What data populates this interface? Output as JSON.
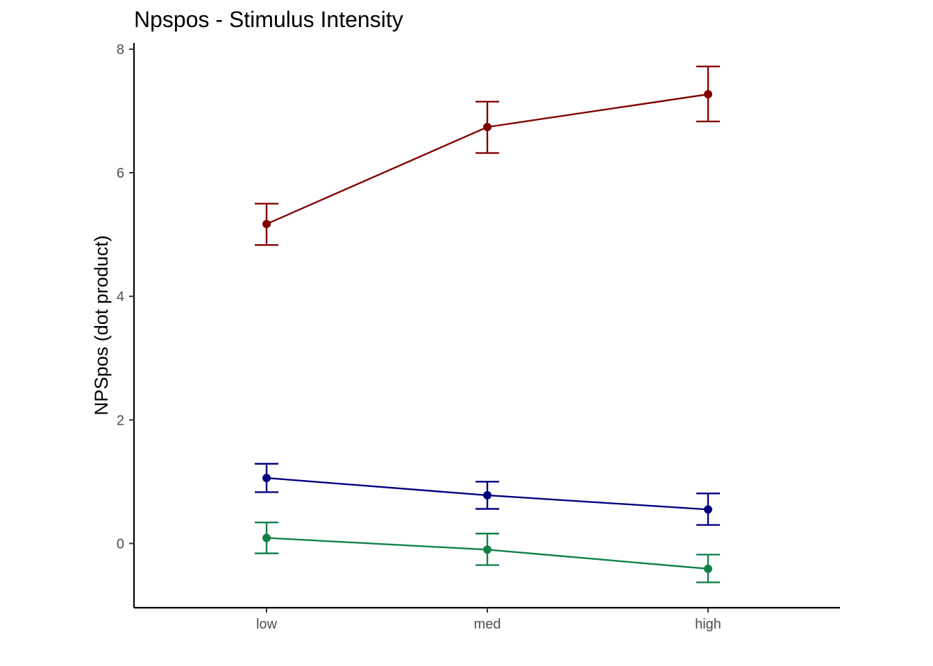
{
  "chart_data": {
    "type": "line",
    "title": "Npspos - Stimulus Intensity",
    "xlabel": "",
    "ylabel": "NPSpos  (dot product)",
    "categories": [
      "low",
      "med",
      "high"
    ],
    "ylim": [
      -1.04,
      8.1
    ],
    "y_ticks": [
      0,
      2,
      4,
      6,
      8
    ],
    "grid": false,
    "legend": "none",
    "series": [
      {
        "color": "#800000",
        "values": [
          5.17,
          6.74,
          7.27
        ],
        "err_low": [
          4.83,
          6.32,
          6.83
        ],
        "err_high": [
          5.5,
          7.15,
          7.72
        ]
      },
      {
        "color": "#00007f",
        "values": [
          1.06,
          0.78,
          0.55
        ],
        "err_low": [
          0.83,
          0.56,
          0.3
        ],
        "err_high": [
          1.29,
          1.0,
          0.81
        ]
      },
      {
        "color": "#118047",
        "values": [
          0.09,
          -0.1,
          -0.41
        ],
        "err_low": [
          -0.16,
          -0.35,
          -0.63
        ],
        "err_high": [
          0.34,
          0.16,
          -0.18
        ]
      }
    ]
  }
}
